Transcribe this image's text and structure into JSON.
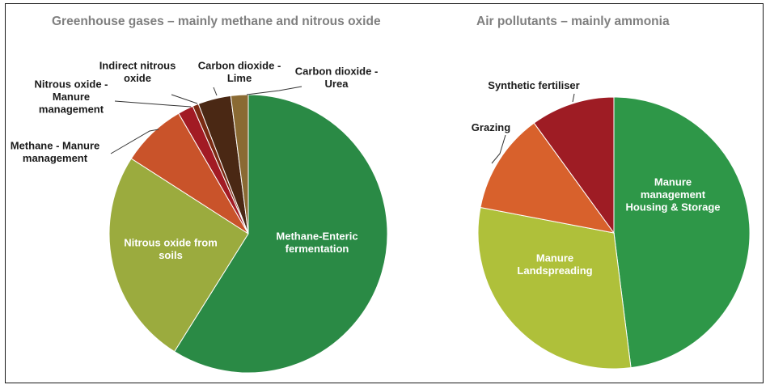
{
  "chart_data": [
    {
      "type": "pie",
      "title": "Greenhouse gases – mainly methane and nitrous oxide",
      "slices": [
        {
          "label": "Methane-Enteric fermentation",
          "value": 58.5,
          "color": "#2a8a45",
          "label_lines": [
            "Methane-Enteric",
            "fermentation"
          ]
        },
        {
          "label": "Nitrous oxide from soils",
          "value": 25.0,
          "color": "#9bab3e",
          "label_lines": [
            "Nitrous oxide from",
            "soils"
          ]
        },
        {
          "label": "Methane - Manure management",
          "value": 7.5,
          "color": "#c9532a",
          "label_lines": [
            "Methane - Manure",
            "management"
          ]
        },
        {
          "label": "Nitrous oxide - Manure management",
          "value": 1.8,
          "color": "#a21b24",
          "label_lines": [
            "Nitrous oxide -",
            "Manure",
            "management"
          ]
        },
        {
          "label": "Indirect nitrous oxide",
          "value": 0.7,
          "color": "#7a2a12",
          "label_lines": [
            "Indirect nitrous",
            "oxide"
          ]
        },
        {
          "label": "Carbon dioxide - Lime",
          "value": 3.8,
          "color": "#4a2814",
          "label_lines": [
            "Carbon dioxide -",
            "Lime"
          ]
        },
        {
          "label": "Carbon dioxide - Urea",
          "value": 2.0,
          "color": "#8a6a33",
          "label_lines": [
            "Carbon dioxide -",
            "Urea"
          ]
        }
      ]
    },
    {
      "type": "pie",
      "title": "Air pollutants – mainly ammonia",
      "slices": [
        {
          "label": "Manure management Housing & Storage",
          "value": 48.0,
          "color": "#2e9748",
          "label_lines": [
            "Manure",
            "management",
            "Housing & Storage"
          ]
        },
        {
          "label": "Manure Landspreading",
          "value": 30.0,
          "color": "#afc03a",
          "label_lines": [
            "Manure",
            "Landspreading"
          ]
        },
        {
          "label": "Grazing",
          "value": 12.0,
          "color": "#d8612c",
          "label_lines": [
            "Grazing"
          ]
        },
        {
          "label": "Synthetic fertiliser",
          "value": 10.0,
          "color": "#9e1c24",
          "label_lines": [
            "Synthetic fertiliser"
          ]
        }
      ]
    }
  ]
}
